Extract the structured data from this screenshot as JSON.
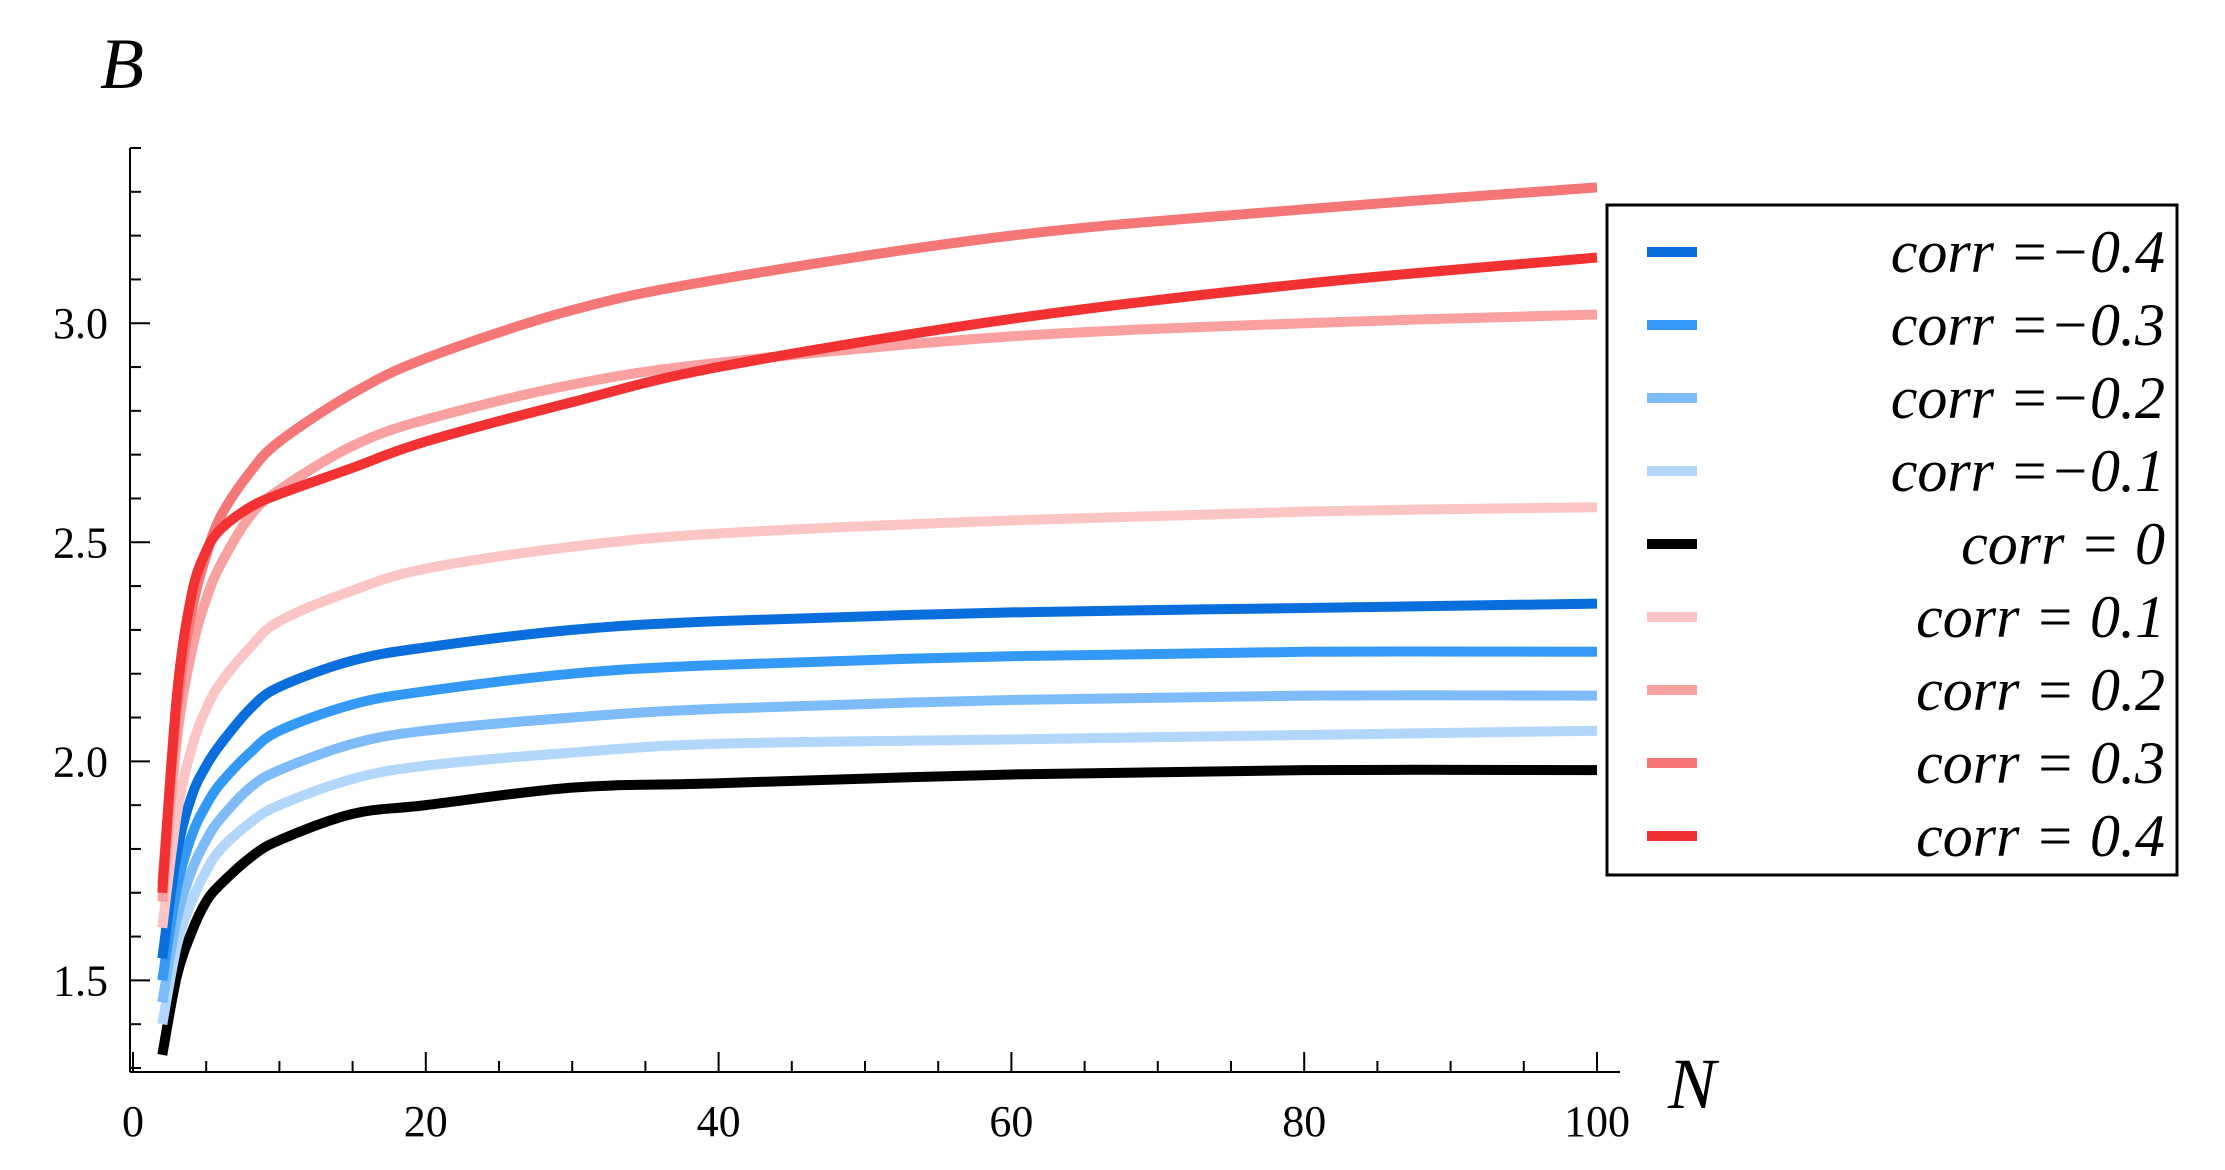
{
  "chart_data": {
    "type": "line",
    "title": "",
    "xlabel": "N",
    "ylabel": "B",
    "xlim": [
      0,
      100
    ],
    "ylim": [
      1.3,
      3.4
    ],
    "x_ticks": [
      "0",
      "20",
      "40",
      "60",
      "80",
      "100"
    ],
    "y_ticks": [
      "1.5",
      "2.0",
      "2.5",
      "3.0"
    ],
    "grid": false,
    "legend_position": "right",
    "series": [
      {
        "name": "corr =−0.4",
        "color": "#0a6fdc",
        "points": [
          [
            2,
            1.55
          ],
          [
            3,
            1.79
          ],
          [
            4,
            1.92
          ],
          [
            5,
            1.99
          ],
          [
            6,
            2.04
          ],
          [
            8,
            2.12
          ],
          [
            10,
            2.17
          ],
          [
            15,
            2.23
          ],
          [
            20,
            2.26
          ],
          [
            30,
            2.3
          ],
          [
            40,
            2.32
          ],
          [
            60,
            2.34
          ],
          [
            80,
            2.35
          ],
          [
            100,
            2.36
          ]
        ]
      },
      {
        "name": "corr =−0.3",
        "color": "#3399f5",
        "points": [
          [
            2,
            1.5
          ],
          [
            3,
            1.71
          ],
          [
            4,
            1.83
          ],
          [
            5,
            1.9
          ],
          [
            6,
            1.95
          ],
          [
            8,
            2.02
          ],
          [
            10,
            2.07
          ],
          [
            15,
            2.13
          ],
          [
            20,
            2.16
          ],
          [
            30,
            2.2
          ],
          [
            40,
            2.22
          ],
          [
            60,
            2.24
          ],
          [
            80,
            2.25
          ],
          [
            100,
            2.25
          ]
        ]
      },
      {
        "name": "corr =−0.2",
        "color": "#7dbcf8",
        "points": [
          [
            2,
            1.45
          ],
          [
            3,
            1.64
          ],
          [
            4,
            1.75
          ],
          [
            5,
            1.82
          ],
          [
            6,
            1.87
          ],
          [
            8,
            1.94
          ],
          [
            10,
            1.98
          ],
          [
            15,
            2.04
          ],
          [
            20,
            2.07
          ],
          [
            30,
            2.1
          ],
          [
            40,
            2.12
          ],
          [
            60,
            2.14
          ],
          [
            80,
            2.15
          ],
          [
            100,
            2.15
          ]
        ]
      },
      {
        "name": "corr =−0.1",
        "color": "#b2d7fb",
        "points": [
          [
            2,
            1.4
          ],
          [
            3,
            1.58
          ],
          [
            4,
            1.68
          ],
          [
            5,
            1.75
          ],
          [
            6,
            1.8
          ],
          [
            8,
            1.86
          ],
          [
            10,
            1.9
          ],
          [
            15,
            1.96
          ],
          [
            20,
            1.99
          ],
          [
            30,
            2.02
          ],
          [
            40,
            2.04
          ],
          [
            60,
            2.05
          ],
          [
            80,
            2.06
          ],
          [
            100,
            2.07
          ]
        ]
      },
      {
        "name": "corr = 0",
        "color": "#000000",
        "points": [
          [
            2,
            1.33
          ],
          [
            3,
            1.51
          ],
          [
            4,
            1.61
          ],
          [
            5,
            1.68
          ],
          [
            6,
            1.72
          ],
          [
            8,
            1.78
          ],
          [
            10,
            1.82
          ],
          [
            15,
            1.88
          ],
          [
            20,
            1.9
          ],
          [
            30,
            1.94
          ],
          [
            40,
            1.95
          ],
          [
            60,
            1.97
          ],
          [
            80,
            1.98
          ],
          [
            100,
            1.98
          ]
        ]
      },
      {
        "name": "corr = 0.1",
        "color": "#fcc5c5",
        "points": [
          [
            2,
            1.62
          ],
          [
            3,
            1.88
          ],
          [
            4,
            2.03
          ],
          [
            5,
            2.12
          ],
          [
            6,
            2.18
          ],
          [
            8,
            2.26
          ],
          [
            10,
            2.32
          ],
          [
            15,
            2.39
          ],
          [
            20,
            2.44
          ],
          [
            30,
            2.49
          ],
          [
            40,
            2.52
          ],
          [
            60,
            2.55
          ],
          [
            80,
            2.57
          ],
          [
            100,
            2.58
          ]
        ]
      },
      {
        "name": "corr = 0.2",
        "color": "#f9a0a0",
        "points": [
          [
            2,
            1.68
          ],
          [
            3,
            2.05
          ],
          [
            4,
            2.25
          ],
          [
            5,
            2.37
          ],
          [
            6,
            2.45
          ],
          [
            8,
            2.56
          ],
          [
            10,
            2.62
          ],
          [
            15,
            2.72
          ],
          [
            20,
            2.78
          ],
          [
            30,
            2.86
          ],
          [
            40,
            2.91
          ],
          [
            60,
            2.97
          ],
          [
            80,
            3.0
          ],
          [
            100,
            3.02
          ]
        ]
      },
      {
        "name": "corr = 0.3",
        "color": "#f47676",
        "points": [
          [
            2,
            1.72
          ],
          [
            3,
            2.12
          ],
          [
            4,
            2.34
          ],
          [
            5,
            2.47
          ],
          [
            6,
            2.56
          ],
          [
            8,
            2.66
          ],
          [
            10,
            2.73
          ],
          [
            15,
            2.84
          ],
          [
            20,
            2.92
          ],
          [
            30,
            3.03
          ],
          [
            40,
            3.1
          ],
          [
            60,
            3.2
          ],
          [
            80,
            3.26
          ],
          [
            100,
            3.31
          ]
        ]
      },
      {
        "name": "corr = 0.4",
        "color": "#f23232",
        "points": [
          [
            2,
            1.7
          ],
          [
            3,
            2.15
          ],
          [
            4,
            2.38
          ],
          [
            5,
            2.48
          ],
          [
            6,
            2.53
          ],
          [
            8,
            2.58
          ],
          [
            10,
            2.61
          ],
          [
            15,
            2.67
          ],
          [
            20,
            2.73
          ],
          [
            30,
            2.82
          ],
          [
            40,
            2.9
          ],
          [
            60,
            3.01
          ],
          [
            80,
            3.09
          ],
          [
            100,
            3.15
          ]
        ]
      }
    ]
  }
}
